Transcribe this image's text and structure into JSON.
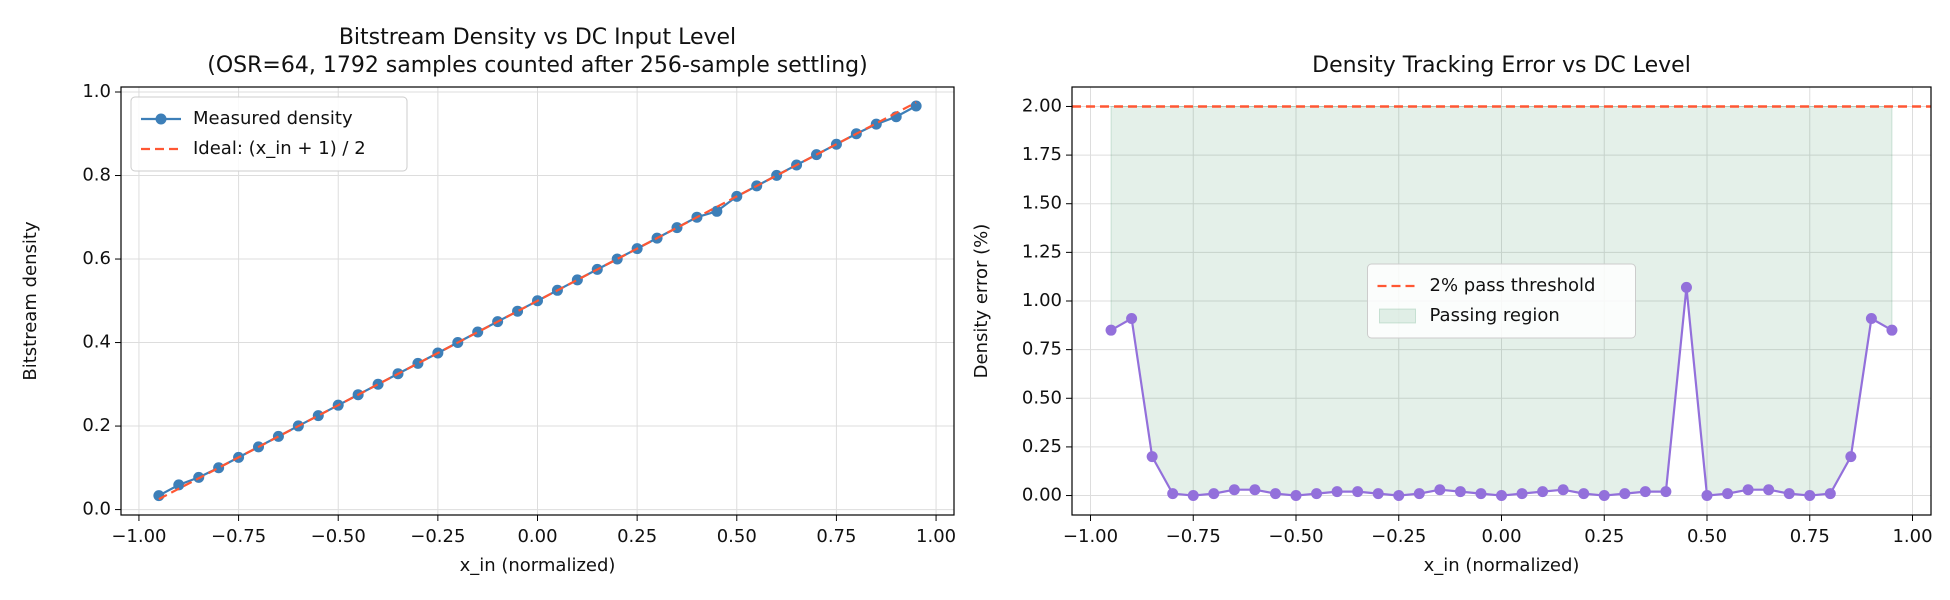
{
  "chart_data": [
    {
      "type": "line",
      "title": "Bitstream Density vs DC Input Level",
      "subtitle": "(OSR=64, 1792 samples counted after 256-sample settling)",
      "xlabel": "x_in (normalized)",
      "ylabel": "Bitstream density",
      "x": [
        -0.95,
        -0.9,
        -0.85,
        -0.8,
        -0.75,
        -0.7,
        -0.65,
        -0.6,
        -0.55,
        -0.5,
        -0.45,
        -0.4,
        -0.35,
        -0.3,
        -0.25,
        -0.2,
        -0.15,
        -0.1,
        -0.05,
        0,
        0.05,
        0.1,
        0.15,
        0.2,
        0.25,
        0.3,
        0.35,
        0.4,
        0.45,
        0.5,
        0.55,
        0.6,
        0.65,
        0.7,
        0.75,
        0.8,
        0.85,
        0.9,
        0.95
      ],
      "series": [
        {
          "name": "Measured density",
          "color": "#3d7fb8",
          "marker": true,
          "dash": false,
          "values": [
            0.0335,
            0.0591,
            0.077,
            0.1001,
            0.125,
            0.1501,
            0.1753,
            0.2003,
            0.2251,
            0.25,
            0.2751,
            0.3002,
            0.3252,
            0.3501,
            0.375,
            0.4001,
            0.4253,
            0.4502,
            0.4751,
            0.5,
            0.5251,
            0.5502,
            0.5753,
            0.6001,
            0.625,
            0.6501,
            0.6752,
            0.7002,
            0.7143,
            0.75,
            0.7751,
            0.8003,
            0.8253,
            0.8501,
            0.875,
            0.9001,
            0.923,
            0.9409,
            0.9665
          ]
        },
        {
          "name": "Ideal: (x_in + 1) / 2",
          "color": "#ff5733",
          "marker": false,
          "dash": true,
          "values": [
            0.025,
            0.05,
            0.075,
            0.1,
            0.125,
            0.15,
            0.175,
            0.2,
            0.225,
            0.25,
            0.275,
            0.3,
            0.325,
            0.35,
            0.375,
            0.4,
            0.425,
            0.45,
            0.475,
            0.5,
            0.525,
            0.55,
            0.575,
            0.6,
            0.625,
            0.65,
            0.675,
            0.7,
            0.725,
            0.75,
            0.775,
            0.8,
            0.825,
            0.85,
            0.875,
            0.9,
            0.925,
            0.95,
            0.975
          ]
        }
      ],
      "xlim": [
        -1.045,
        1.045
      ],
      "xticks": [
        {
          "value": -1,
          "label": "−1.00"
        },
        {
          "value": -0.75,
          "label": "−0.75"
        },
        {
          "value": -0.5,
          "label": "−0.50"
        },
        {
          "value": -0.25,
          "label": "−0.25"
        },
        {
          "value": 0,
          "label": "0.00"
        },
        0.25,
        {
          "value": 0.5,
          "label": "0.50"
        },
        0.75,
        {
          "value": 1,
          "label": "1.00"
        }
      ],
      "ylim": [
        -0.013,
        1.012
      ],
      "yticks": [
        {
          "value": 0,
          "label": "0.0"
        },
        0.2,
        0.4,
        0.6,
        0.8,
        {
          "value": 1,
          "label": "1.0"
        }
      ],
      "grid": true,
      "legend": "upper left"
    },
    {
      "type": "line",
      "title": "Density Tracking Error vs DC Level",
      "xlabel": "x_in (normalized)",
      "ylabel": "Density error (%)",
      "x": [
        -0.95,
        -0.9,
        -0.85,
        -0.8,
        -0.75,
        -0.7,
        -0.65,
        -0.6,
        -0.55,
        -0.5,
        -0.45,
        -0.4,
        -0.35,
        -0.3,
        -0.25,
        -0.2,
        -0.15,
        -0.1,
        -0.05,
        0,
        0.05,
        0.1,
        0.15,
        0.2,
        0.25,
        0.3,
        0.35,
        0.4,
        0.45,
        0.5,
        0.55,
        0.6,
        0.65,
        0.7,
        0.75,
        0.8,
        0.85,
        0.9,
        0.95
      ],
      "series": [
        {
          "color": "#9370db",
          "marker": true,
          "dash": false,
          "values": [
            0.85,
            0.91,
            0.2,
            0.01,
            0,
            0.01,
            0.03,
            0.03,
            0.01,
            0,
            0.01,
            0.02,
            0.02,
            0.01,
            0,
            0.01,
            0.03,
            0.02,
            0.01,
            0,
            0.01,
            0.02,
            0.03,
            0.01,
            0,
            0.01,
            0.02,
            0.02,
            1.07,
            0,
            0.01,
            0.03,
            0.03,
            0.01,
            0,
            0.01,
            0.2,
            0.91,
            0.85
          ]
        }
      ],
      "threshold": {
        "name": "2% pass threshold",
        "value": 2,
        "color": "#ff5733"
      },
      "fill": {
        "name": "Passing region",
        "color": "#2e8b57"
      },
      "xlim": [
        -1.045,
        1.045
      ],
      "xticks": [
        {
          "value": -1,
          "label": "−1.00"
        },
        {
          "value": -0.75,
          "label": "−0.75"
        },
        {
          "value": -0.5,
          "label": "−0.50"
        },
        {
          "value": -0.25,
          "label": "−0.25"
        },
        {
          "value": 0,
          "label": "0.00"
        },
        0.25,
        {
          "value": 0.5,
          "label": "0.50"
        },
        0.75,
        {
          "value": 1,
          "label": "1.00"
        }
      ],
      "ylim": [
        -0.1,
        2.1
      ],
      "yticks": [
        {
          "value": 0,
          "label": "0.00"
        },
        0.25,
        {
          "value": 0.5,
          "label": "0.50"
        },
        0.75,
        {
          "value": 1,
          "label": "1.00"
        },
        1.25,
        {
          "value": 1.5,
          "label": "1.50"
        },
        1.75,
        {
          "value": 2,
          "label": "2.00"
        }
      ],
      "grid": true,
      "legend": "center"
    }
  ]
}
